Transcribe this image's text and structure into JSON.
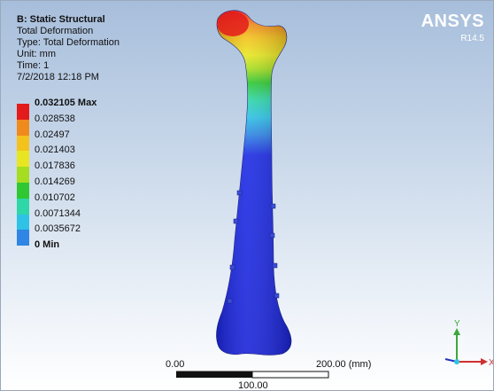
{
  "header": {
    "title": "B: Static Structural",
    "lines": [
      "Total Deformation",
      "Type: Total Deformation",
      "Unit: mm",
      "Time: 1",
      "7/2/2018 12:18 PM"
    ]
  },
  "brand": {
    "name": "ANSYS",
    "version": "R14.5"
  },
  "legend": {
    "entries": [
      {
        "label": "0.032105 Max",
        "color": "#e41b1b",
        "bold": true
      },
      {
        "label": "0.028538",
        "color": "#f08a1c",
        "bold": false
      },
      {
        "label": "0.02497",
        "color": "#f4c21c",
        "bold": false
      },
      {
        "label": "0.021403",
        "color": "#e8e622",
        "bold": false
      },
      {
        "label": "0.017836",
        "color": "#a6dd20",
        "bold": false
      },
      {
        "label": "0.014269",
        "color": "#2fc832",
        "bold": false
      },
      {
        "label": "0.010702",
        "color": "#2fd6a8",
        "bold": false
      },
      {
        "label": "0.0071344",
        "color": "#2ec2e6",
        "bold": false
      },
      {
        "label": "0.0035672",
        "color": "#2f86e4",
        "bold": false
      },
      {
        "label": "0 Min",
        "color": "#1c2be3",
        "bold": true
      }
    ]
  },
  "scale_bar": {
    "left_label": "0.00",
    "right_label": "200.00 (mm)",
    "mid_label": "100.00"
  },
  "triad": {
    "y_label": "Y",
    "x_label": "X",
    "y_color": "#3aa83a",
    "x_color": "#d03030"
  }
}
